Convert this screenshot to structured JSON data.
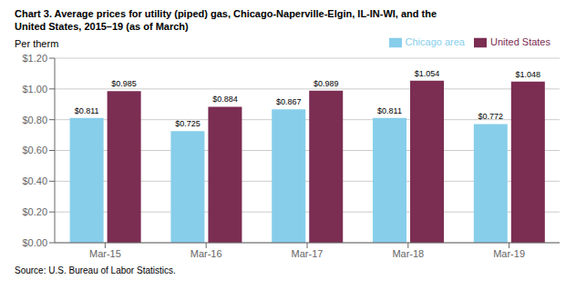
{
  "chart_data": {
    "type": "bar",
    "title": "Chart 3. Average prices for utility (piped) gas, Chicago-Naperville-Elgin, IL-IN-WI, and the\nUnited States, 2015–19 (as of March)",
    "y_label": "Per therm",
    "annotations": [
      "Source: U.S. Bureau of Labor Statistics."
    ],
    "categories": [
      "Mar-15",
      "Mar-16",
      "Mar-17",
      "Mar-18",
      "Mar-19"
    ],
    "series": [
      {
        "name": "Chicago area",
        "color": "#87CEEB",
        "values": [
          0.811,
          0.725,
          0.867,
          0.811,
          0.772
        ],
        "value_labels": [
          "$0.811",
          "$0.725",
          "$0.867",
          "$0.811",
          "$0.772"
        ]
      },
      {
        "name": "United States",
        "color": "#7B2D52",
        "values": [
          0.985,
          0.884,
          0.989,
          1.054,
          1.048
        ],
        "value_labels": [
          "$0.985",
          "$0.884",
          "$0.989",
          "$1.054",
          "$1.048"
        ]
      }
    ],
    "ylim": [
      0,
      1.2
    ],
    "yticks": [
      {
        "value": 0.0,
        "label": "$0.00"
      },
      {
        "value": 0.2,
        "label": "$0.20"
      },
      {
        "value": 0.4,
        "label": "$0.40"
      },
      {
        "value": 0.6,
        "label": "$0.60"
      },
      {
        "value": 0.8,
        "label": "$0.80"
      },
      {
        "value": 1.0,
        "label": "$1.00"
      },
      {
        "value": 1.2,
        "label": "$1.20"
      }
    ],
    "grid": true,
    "legend": "top right",
    "data_labels": true
  }
}
